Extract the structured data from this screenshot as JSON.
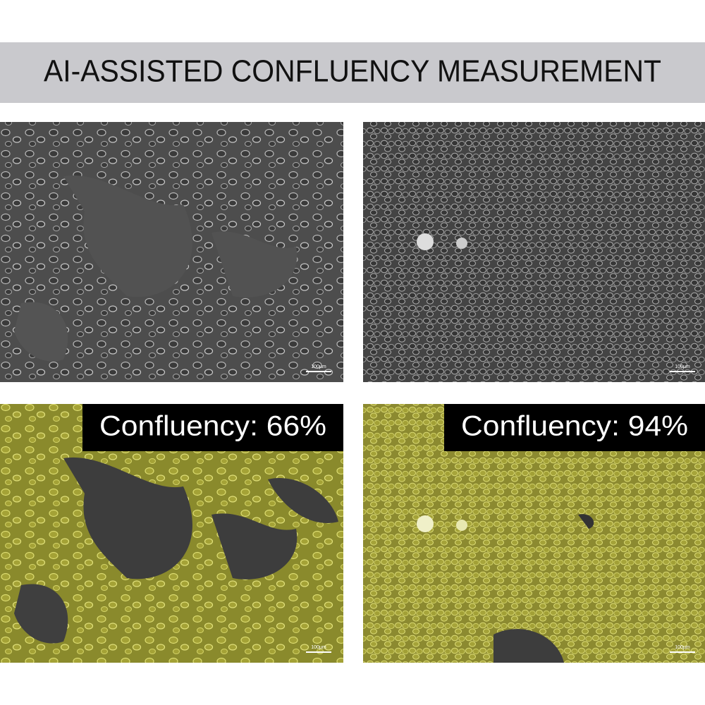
{
  "header": {
    "title": "AI-ASSISTED CONFLUENCY MEASUREMENT"
  },
  "panels": [
    {
      "scale_bar": "100µm"
    },
    {
      "scale_bar": "100µm"
    },
    {
      "label": "Confluency: 66%",
      "scale_bar": "100µm"
    },
    {
      "label": "Confluency: 94%",
      "scale_bar": "100µm"
    }
  ]
}
